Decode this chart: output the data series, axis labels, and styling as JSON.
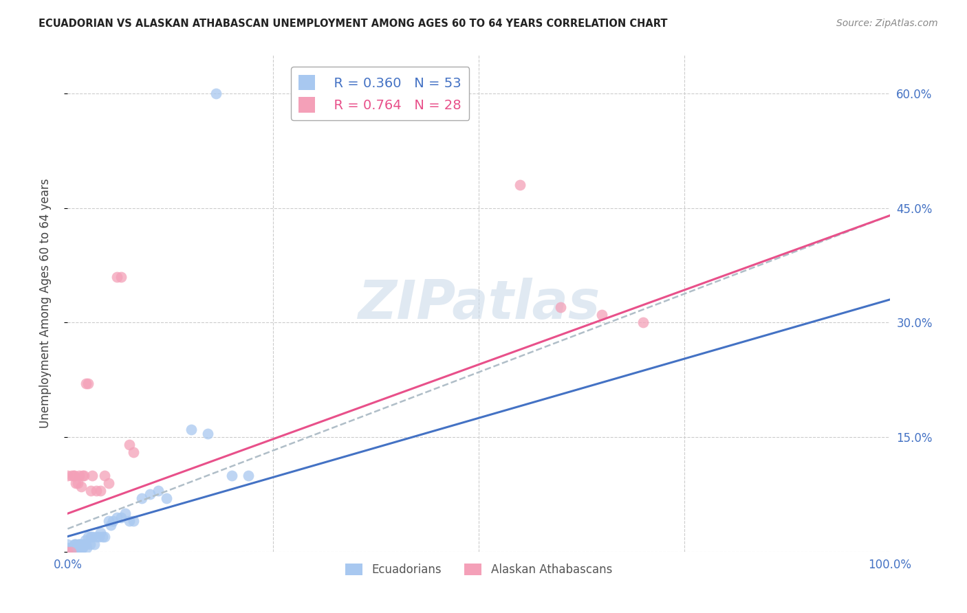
{
  "title": "ECUADORIAN VS ALASKAN ATHABASCAN UNEMPLOYMENT AMONG AGES 60 TO 64 YEARS CORRELATION CHART",
  "source": "Source: ZipAtlas.com",
  "ylabel": "Unemployment Among Ages 60 to 64 years",
  "xlim": [
    0.0,
    1.0
  ],
  "ylim": [
    0.0,
    0.65
  ],
  "yticks": [
    0.0,
    0.15,
    0.3,
    0.45,
    0.6
  ],
  "ytick_labels": [
    "",
    "15.0%",
    "30.0%",
    "45.0%",
    "60.0%"
  ],
  "blue_color": "#a8c8f0",
  "pink_color": "#f4a0b8",
  "blue_line_color": "#4472c4",
  "pink_line_color": "#e8508a",
  "dashed_line_color": "#b0bec8",
  "watermark_text": "ZIPatlas",
  "background_color": "#ffffff",
  "blue_line": {
    "x0": 0.0,
    "y0": 0.02,
    "x1": 1.0,
    "y1": 0.33
  },
  "pink_line": {
    "x0": 0.0,
    "y0": 0.05,
    "x1": 1.0,
    "y1": 0.44
  },
  "dashed_line": {
    "x0": 0.0,
    "y0": 0.03,
    "x1": 1.0,
    "y1": 0.44
  },
  "ecuadorians_x": [
    0.0,
    0.0,
    0.0,
    0.003,
    0.005,
    0.005,
    0.007,
    0.008,
    0.008,
    0.009,
    0.01,
    0.01,
    0.01,
    0.012,
    0.013,
    0.014,
    0.015,
    0.015,
    0.016,
    0.017,
    0.018,
    0.019,
    0.02,
    0.021,
    0.022,
    0.023,
    0.025,
    0.027,
    0.028,
    0.03,
    0.032,
    0.035,
    0.038,
    0.04,
    0.042,
    0.045,
    0.05,
    0.052,
    0.055,
    0.06,
    0.065,
    0.07,
    0.075,
    0.08,
    0.09,
    0.1,
    0.11,
    0.12,
    0.15,
    0.17,
    0.2,
    0.22,
    0.18
  ],
  "ecuadorians_y": [
    0.0,
    0.005,
    0.01,
    0.0,
    0.0,
    0.005,
    0.005,
    0.0,
    0.01,
    0.01,
    0.0,
    0.005,
    0.01,
    0.005,
    0.01,
    0.01,
    0.0,
    0.01,
    0.01,
    0.005,
    0.005,
    0.01,
    0.01,
    0.015,
    0.01,
    0.005,
    0.02,
    0.01,
    0.02,
    0.02,
    0.01,
    0.02,
    0.02,
    0.025,
    0.02,
    0.02,
    0.04,
    0.035,
    0.04,
    0.045,
    0.045,
    0.05,
    0.04,
    0.04,
    0.07,
    0.075,
    0.08,
    0.07,
    0.16,
    0.155,
    0.1,
    0.1,
    0.6
  ],
  "athabascan_x": [
    0.0,
    0.0,
    0.004,
    0.005,
    0.007,
    0.008,
    0.01,
    0.012,
    0.014,
    0.016,
    0.018,
    0.02,
    0.022,
    0.025,
    0.028,
    0.03,
    0.035,
    0.04,
    0.045,
    0.05,
    0.06,
    0.065,
    0.075,
    0.08,
    0.55,
    0.6,
    0.65,
    0.7
  ],
  "athabascan_y": [
    0.0,
    0.1,
    0.0,
    0.1,
    0.1,
    0.1,
    0.09,
    0.09,
    0.1,
    0.085,
    0.1,
    0.1,
    0.22,
    0.22,
    0.08,
    0.1,
    0.08,
    0.08,
    0.1,
    0.09,
    0.36,
    0.36,
    0.14,
    0.13,
    0.48,
    0.32,
    0.31,
    0.3
  ]
}
